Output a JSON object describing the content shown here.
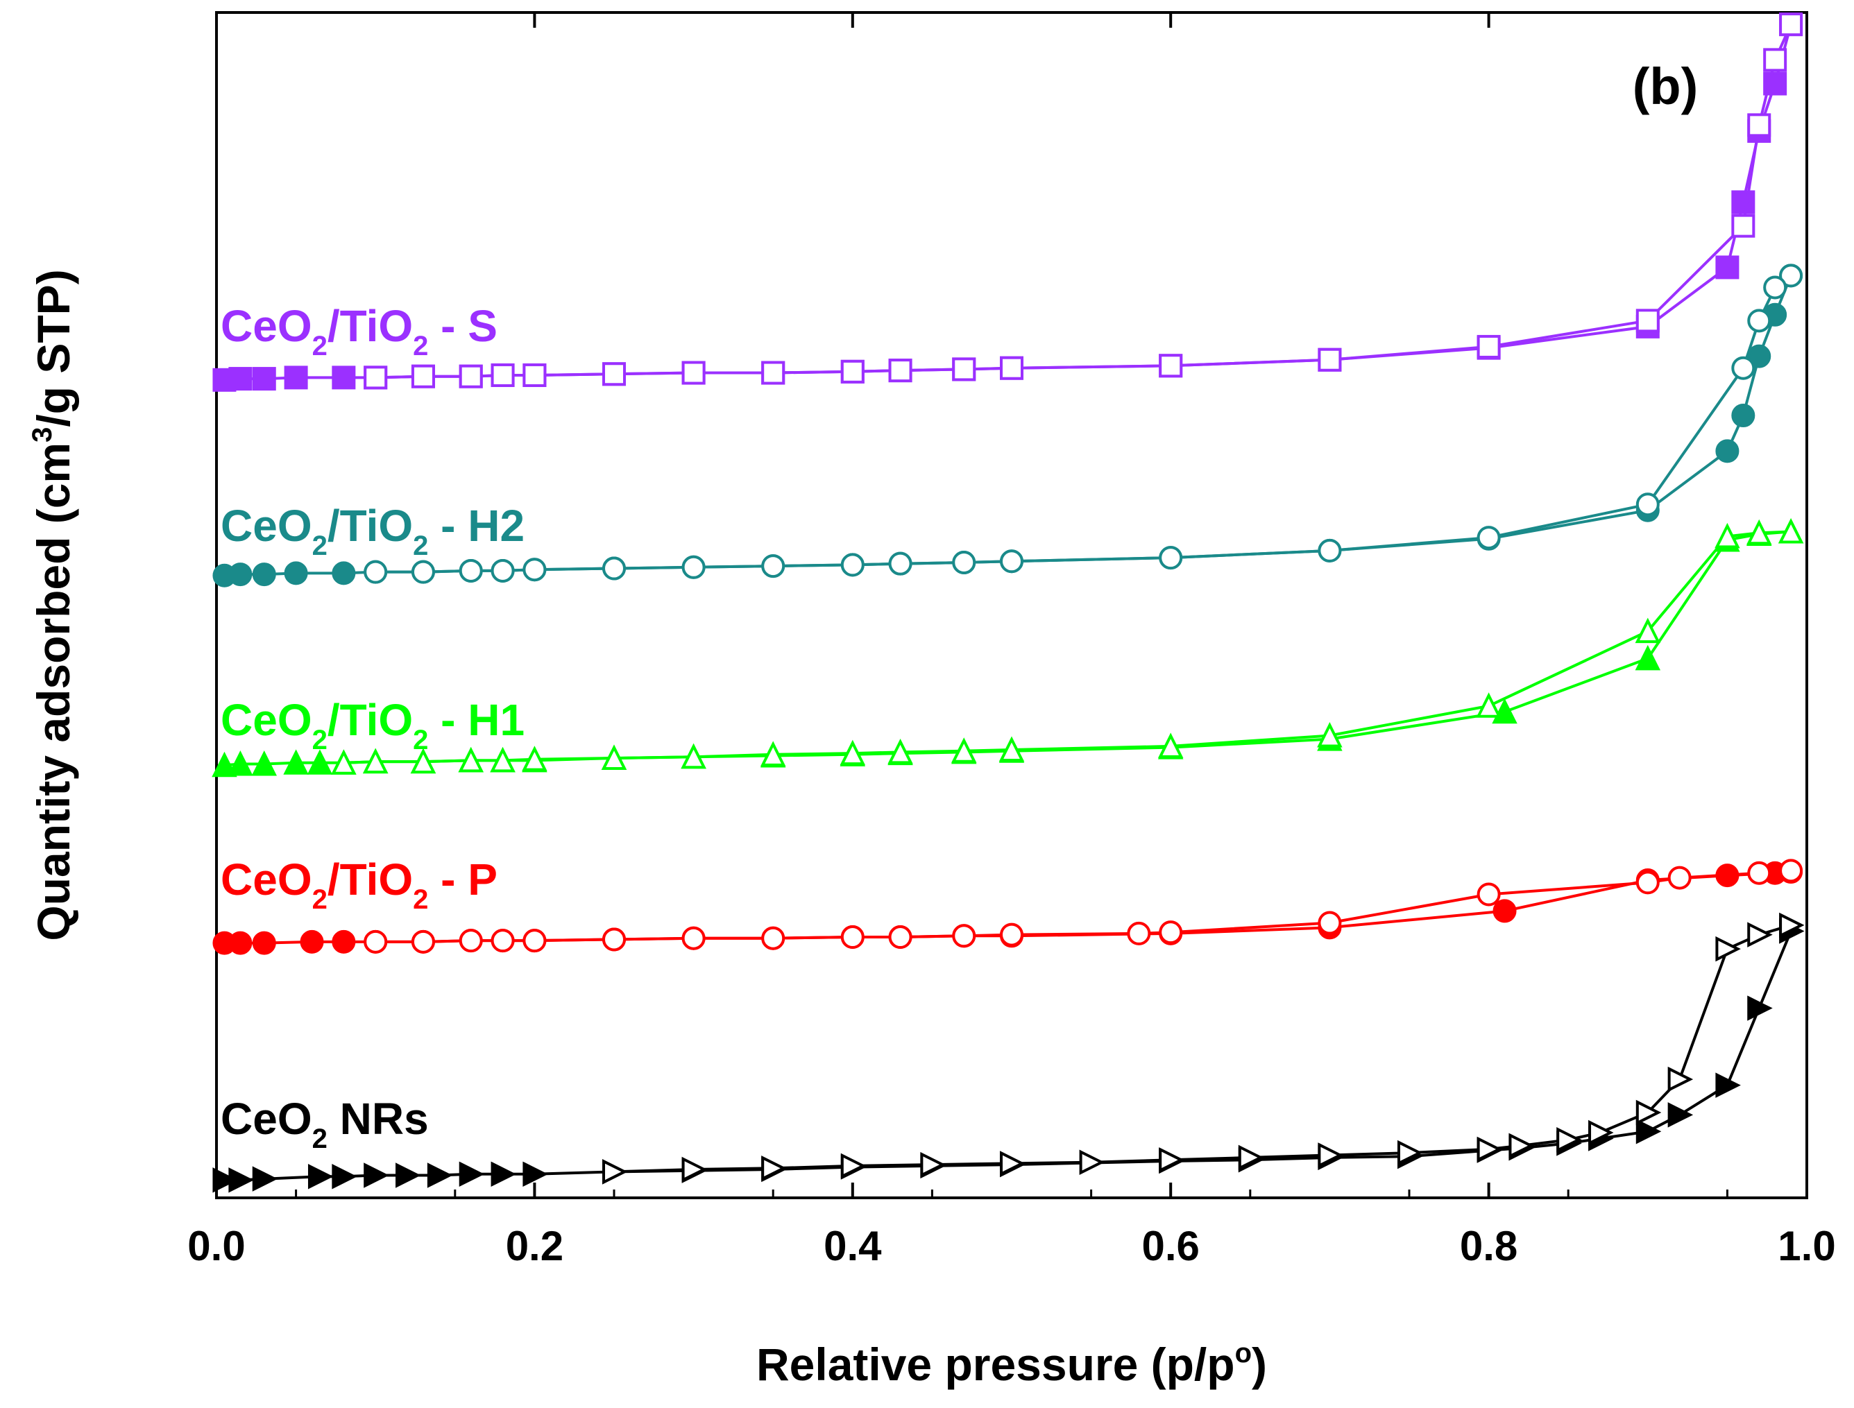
{
  "chart_data": {
    "type": "line",
    "panel_label": "(b)",
    "xlabel": {
      "main": "Relative pressure (p/p",
      "sup": "o",
      "tail": ")"
    },
    "ylabel": {
      "main": "Quantity adsorbed (cm",
      "sup": "3",
      "tail": "/g STP)"
    },
    "xlim": [
      0.0,
      1.0
    ],
    "ylim": [
      0,
      1000
    ],
    "x_ticks": [
      0.0,
      0.2,
      0.4,
      0.6,
      0.8,
      1.0
    ],
    "x_tick_labels": [
      "0.0",
      "0.2",
      "0.4",
      "0.6",
      "0.8",
      "1.0"
    ],
    "y_ticks_shown": false,
    "series": [
      {
        "name": "CeO2 NRs",
        "label_parts": [
          {
            "text": "CeO",
            "style": "normal"
          },
          {
            "text": "2",
            "style": "sub"
          },
          {
            "text": " NRs",
            "style": "normal"
          }
        ],
        "color": "#000000",
        "marker": "triangle-right",
        "adsorption": {
          "x": [
            0.005,
            0.015,
            0.03,
            0.065,
            0.08,
            0.1,
            0.12,
            0.14,
            0.16,
            0.18,
            0.2,
            0.25,
            0.3,
            0.35,
            0.4,
            0.45,
            0.5,
            0.6,
            0.65,
            0.7,
            0.75,
            0.8,
            0.82,
            0.85,
            0.87,
            0.9,
            0.92,
            0.95,
            0.97,
            0.99
          ],
          "y": [
            15,
            15,
            16,
            18,
            18,
            19,
            19,
            19,
            20,
            20,
            20,
            22,
            23,
            24,
            26,
            27,
            28,
            31,
            32,
            34,
            35,
            40,
            42,
            46,
            50,
            56,
            70,
            95,
            160,
            225
          ]
        },
        "desorption": {
          "x": [
            0.99,
            0.97,
            0.95,
            0.92,
            0.9,
            0.87,
            0.85,
            0.82,
            0.8,
            0.75,
            0.7,
            0.65,
            0.6,
            0.55,
            0.5,
            0.45,
            0.4,
            0.35,
            0.3,
            0.25
          ],
          "y": [
            230,
            222,
            210,
            100,
            72,
            55,
            49,
            44,
            41,
            38,
            36,
            34,
            32,
            30,
            29,
            28,
            27,
            25,
            24,
            22
          ]
        }
      },
      {
        "name": "CeO2/TiO2 - P",
        "label_parts": [
          {
            "text": "CeO",
            "style": "normal"
          },
          {
            "text": "2",
            "style": "sub"
          },
          {
            "text": "/TiO",
            "style": "normal"
          },
          {
            "text": "2",
            "style": "sub"
          },
          {
            "text": " - P",
            "style": "normal"
          }
        ],
        "color": "#ff0000",
        "marker": "circle",
        "adsorption": {
          "x": [
            0.005,
            0.015,
            0.03,
            0.06,
            0.08,
            0.1,
            0.13,
            0.16,
            0.18,
            0.2,
            0.25,
            0.3,
            0.35,
            0.4,
            0.43,
            0.47,
            0.5,
            0.6,
            0.7,
            0.81,
            0.9,
            0.95,
            0.98,
            0.99
          ],
          "y": [
            215,
            215,
            215,
            216,
            216,
            216,
            216,
            217,
            217,
            217,
            218,
            219,
            219,
            220,
            220,
            221,
            221,
            223,
            228,
            242,
            268,
            272,
            274,
            275
          ]
        },
        "desorption": {
          "x": [
            0.99,
            0.97,
            0.92,
            0.9,
            0.8,
            0.7,
            0.6,
            0.58,
            0.5,
            0.47,
            0.43,
            0.4,
            0.35,
            0.3,
            0.25,
            0.2,
            0.18,
            0.16,
            0.13,
            0.1
          ],
          "y": [
            276,
            274,
            270,
            266,
            256,
            232,
            224,
            223,
            222,
            221,
            220,
            220,
            219,
            219,
            218,
            217,
            217,
            217,
            216,
            216
          ]
        }
      },
      {
        "name": "CeO2/TiO2 - H1",
        "label_parts": [
          {
            "text": "CeO",
            "style": "normal"
          },
          {
            "text": "2",
            "style": "sub"
          },
          {
            "text": "/TiO",
            "style": "normal"
          },
          {
            "text": "2",
            "style": "sub"
          },
          {
            "text": " - H1",
            "style": "normal"
          }
        ],
        "color": "#00ff00",
        "marker": "triangle-up",
        "adsorption": {
          "x": [
            0.005,
            0.015,
            0.03,
            0.05,
            0.065,
            0.08,
            0.1,
            0.13,
            0.16,
            0.18,
            0.2,
            0.25,
            0.3,
            0.35,
            0.4,
            0.43,
            0.47,
            0.5,
            0.6,
            0.7,
            0.81,
            0.9,
            0.95,
            0.97,
            0.99
          ],
          "y": [
            365,
            366,
            366,
            367,
            367,
            367,
            368,
            368,
            369,
            369,
            369,
            371,
            372,
            373,
            374,
            375,
            376,
            377,
            380,
            387,
            410,
            455,
            555,
            560,
            562
          ]
        },
        "desorption": {
          "x": [
            0.99,
            0.97,
            0.95,
            0.9,
            0.8,
            0.7,
            0.6,
            0.5,
            0.47,
            0.43,
            0.4,
            0.35,
            0.3,
            0.25,
            0.2,
            0.18,
            0.16,
            0.13,
            0.1,
            0.08
          ],
          "y": [
            562,
            561,
            558,
            478,
            415,
            390,
            381,
            378,
            377,
            376,
            375,
            374,
            372,
            371,
            370,
            369,
            369,
            368,
            368,
            367
          ]
        }
      },
      {
        "name": "CeO2/TiO2 - H2",
        "label_parts": [
          {
            "text": "CeO",
            "style": "normal"
          },
          {
            "text": "2",
            "style": "sub"
          },
          {
            "text": "/TiO",
            "style": "normal"
          },
          {
            "text": "2",
            "style": "sub"
          },
          {
            "text": " - H2",
            "style": "normal"
          }
        ],
        "color": "#1a8a8a",
        "marker": "circle",
        "adsorption": {
          "x": [
            0.005,
            0.015,
            0.03,
            0.05,
            0.08,
            0.1,
            0.13,
            0.16,
            0.18,
            0.2,
            0.25,
            0.3,
            0.35,
            0.4,
            0.43,
            0.47,
            0.5,
            0.6,
            0.7,
            0.8,
            0.9,
            0.95,
            0.96,
            0.97,
            0.98,
            0.99
          ],
          "y": [
            525,
            526,
            526,
            527,
            527,
            528,
            528,
            529,
            529,
            530,
            531,
            532,
            533,
            534,
            535,
            536,
            537,
            540,
            546,
            556,
            580,
            630,
            660,
            710,
            745,
            778
          ]
        },
        "desorption": {
          "x": [
            0.99,
            0.98,
            0.97,
            0.96,
            0.9,
            0.8,
            0.7,
            0.6,
            0.5,
            0.47,
            0.43,
            0.4,
            0.35,
            0.3,
            0.25,
            0.2,
            0.18,
            0.16,
            0.13,
            0.1
          ],
          "y": [
            778,
            768,
            740,
            700,
            585,
            557,
            546,
            540,
            537,
            536,
            535,
            534,
            533,
            532,
            531,
            530,
            529,
            529,
            528,
            528
          ]
        }
      },
      {
        "name": "CeO2/TiO2 - S",
        "label_parts": [
          {
            "text": "CeO",
            "style": "normal"
          },
          {
            "text": "2",
            "style": "sub"
          },
          {
            "text": "/TiO",
            "style": "normal"
          },
          {
            "text": "2",
            "style": "sub"
          },
          {
            "text": " - S",
            "style": "normal"
          }
        ],
        "color": "#9b30ff",
        "marker": "square",
        "adsorption": {
          "x": [
            0.005,
            0.015,
            0.03,
            0.05,
            0.08,
            0.1,
            0.13,
            0.16,
            0.18,
            0.2,
            0.25,
            0.3,
            0.35,
            0.4,
            0.43,
            0.47,
            0.5,
            0.6,
            0.7,
            0.8,
            0.9,
            0.95,
            0.96,
            0.97,
            0.98,
            0.99
          ],
          "y": [
            690,
            691,
            691,
            692,
            692,
            692,
            693,
            693,
            694,
            694,
            695,
            696,
            696,
            697,
            698,
            699,
            700,
            702,
            707,
            717,
            735,
            785,
            840,
            900,
            940,
            990
          ]
        },
        "desorption": {
          "x": [
            0.99,
            0.98,
            0.97,
            0.96,
            0.9,
            0.8,
            0.7,
            0.6,
            0.5,
            0.47,
            0.43,
            0.4,
            0.35,
            0.3,
            0.25,
            0.2,
            0.18,
            0.16,
            0.13,
            0.1
          ],
          "y": [
            990,
            960,
            905,
            820,
            740,
            718,
            707,
            702,
            700,
            699,
            698,
            697,
            696,
            696,
            695,
            694,
            694,
            693,
            693,
            692
          ]
        }
      }
    ]
  }
}
